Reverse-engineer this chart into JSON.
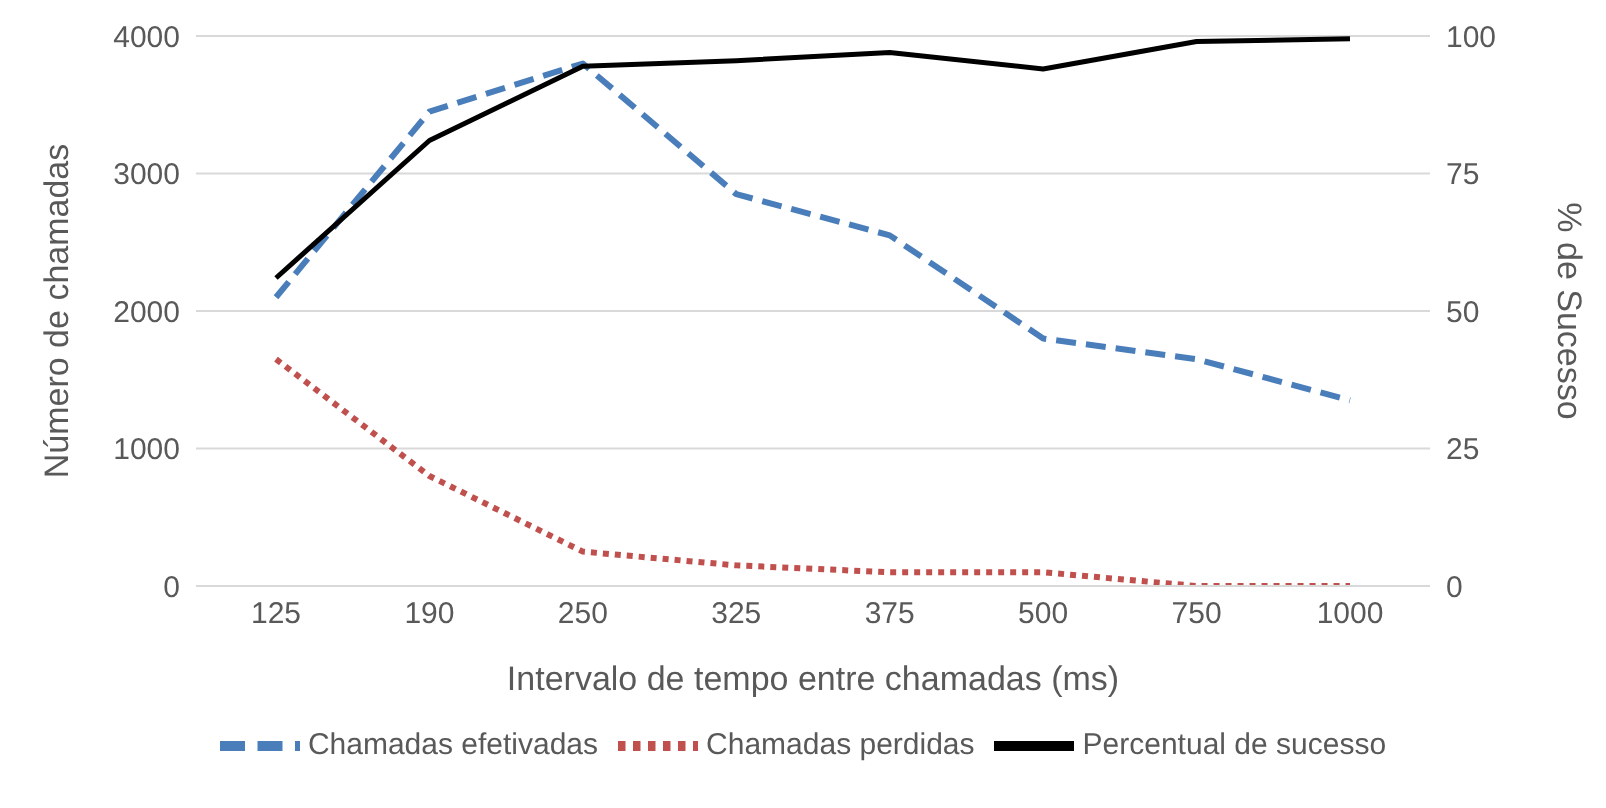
{
  "chart_data": {
    "type": "line",
    "xlabel": "Intervalo de tempo entre chamadas (ms)",
    "ylabel": "Número de chamadas",
    "y2label": "% de Sucesso",
    "categories": [
      "125",
      "190",
      "250",
      "325",
      "375",
      "500",
      "750",
      "1000"
    ],
    "series": [
      {
        "name": "Chamadas efetivadas",
        "color": "#4a7ebb",
        "line_style": "dashed",
        "values": [
          2100,
          3450,
          3800,
          2850,
          2550,
          1800,
          1650,
          1350
        ]
      },
      {
        "name": "Chamadas perdidas",
        "color": "#c0504d",
        "line_style": "dotted",
        "values": [
          1650,
          800,
          250,
          150,
          100,
          100,
          0,
          0
        ]
      },
      {
        "name": "Percentual de sucesso",
        "color": "#000000",
        "line_style": "solid",
        "axis": "y2",
        "values": [
          56,
          81,
          94.5,
          95.5,
          97,
          94,
          99,
          99.5
        ]
      }
    ],
    "ylim": [
      0,
      4000
    ],
    "yticks": [
      0,
      1000,
      2000,
      3000,
      4000
    ],
    "y2lim": [
      0,
      100
    ],
    "y2ticks": [
      0,
      25,
      50,
      75,
      100
    ],
    "grid": "y",
    "legend": "bottom",
    "marker": "none"
  }
}
